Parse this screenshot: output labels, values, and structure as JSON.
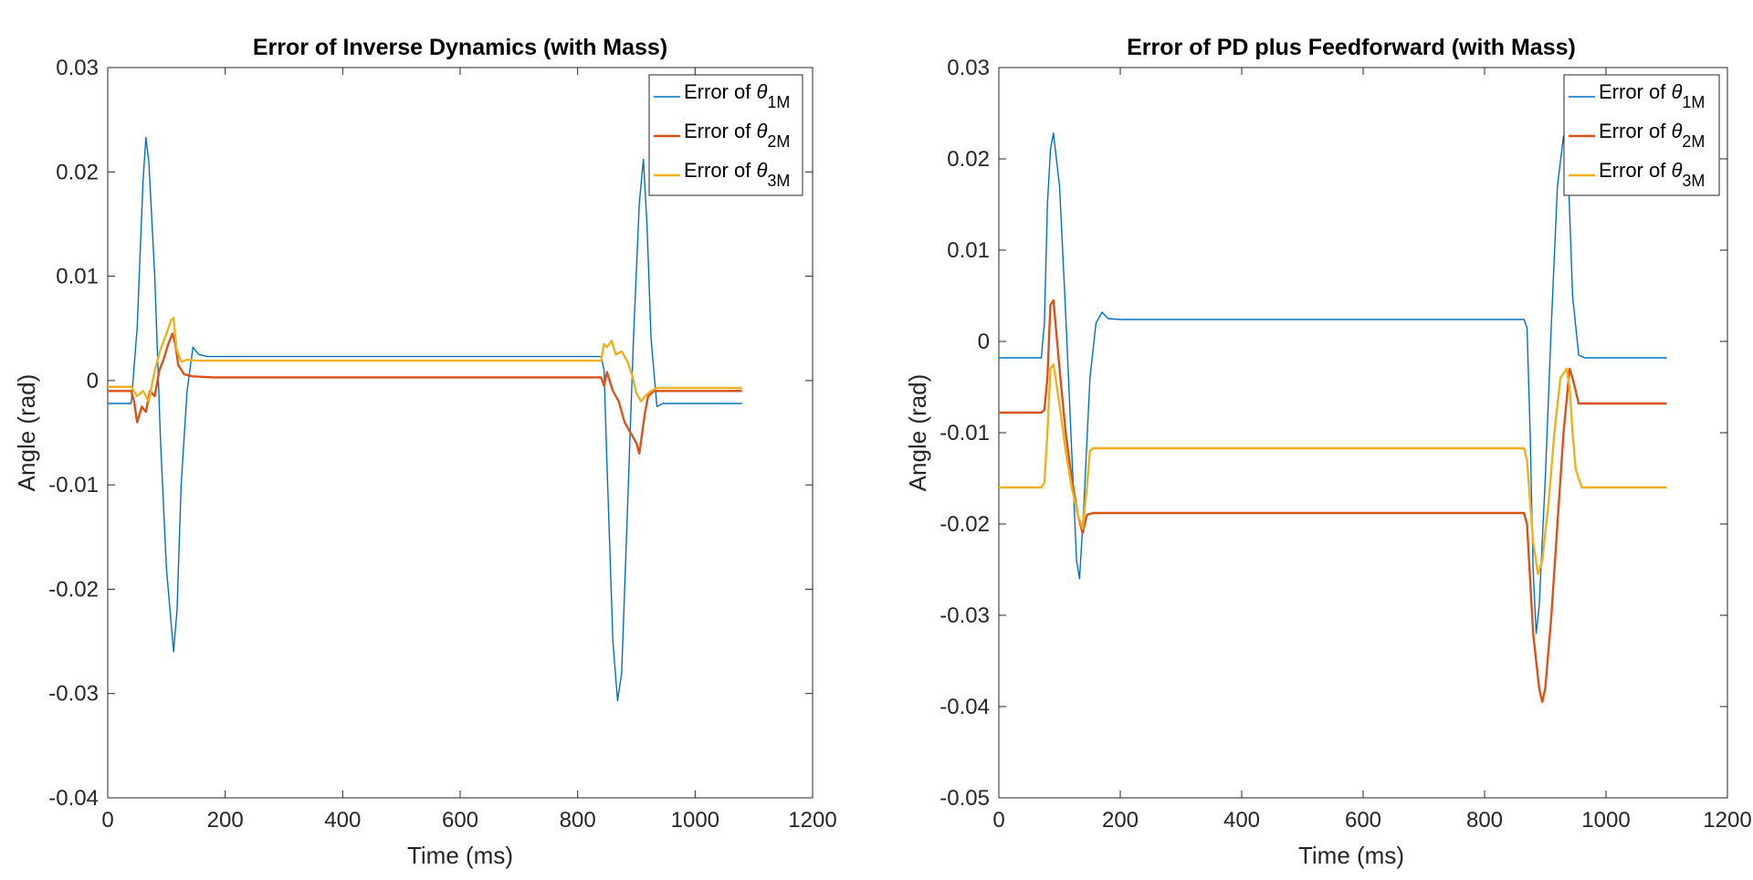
{
  "colors": {
    "series1": "#0072BD",
    "series2": "#D95319",
    "series3": "#EDB120",
    "axes": "#262626",
    "background": "#ffffff"
  },
  "chart_data": [
    {
      "type": "line",
      "title": "Error of Inverse Dynamics (with Mass)",
      "xlabel": "Time (ms)",
      "ylabel": "Angle (rad)",
      "xlim": [
        0,
        1200
      ],
      "ylim": [
        -0.04,
        0.03
      ],
      "xticks": [
        0,
        200,
        400,
        600,
        800,
        1000,
        1200
      ],
      "yticks": [
        -0.04,
        -0.03,
        -0.02,
        -0.01,
        0,
        0.01,
        0.02,
        0.03
      ],
      "xtick_labels": [
        "0",
        "200",
        "400",
        "600",
        "800",
        "1000",
        "1200"
      ],
      "ytick_labels": [
        "-0.04",
        "-0.03",
        "-0.02",
        "-0.01",
        "0",
        "0.01",
        "0.02",
        "0.03"
      ],
      "grid": false,
      "legend_position": "top-right",
      "series": [
        {
          "name": "Error of θ1M",
          "legend_prefix": "Error of ",
          "legend_symbol": "θ",
          "legend_subscript": "1M",
          "x": [
            0,
            40,
            50,
            60,
            65,
            70,
            80,
            90,
            100,
            112,
            118,
            125,
            135,
            145,
            155,
            170,
            200,
            400,
            600,
            800,
            840,
            845,
            850,
            860,
            868,
            875,
            885,
            895,
            905,
            912,
            918,
            925,
            935,
            945,
            1080
          ],
          "y": [
            -0.0022,
            -0.0022,
            0.005,
            0.019,
            0.0233,
            0.021,
            0.01,
            -0.006,
            -0.018,
            -0.026,
            -0.022,
            -0.01,
            -0.001,
            0.0032,
            0.0025,
            0.0023,
            0.0023,
            0.0023,
            0.0023,
            0.0023,
            0.0023,
            0.001,
            -0.008,
            -0.025,
            -0.0307,
            -0.028,
            -0.012,
            0.004,
            0.017,
            0.0212,
            0.015,
            0.004,
            -0.0025,
            -0.0022,
            -0.0022
          ]
        },
        {
          "name": "Error of θ2M",
          "legend_prefix": "Error of ",
          "legend_symbol": "θ",
          "legend_subscript": "2M",
          "x": [
            0,
            40,
            45,
            50,
            58,
            65,
            72,
            80,
            88,
            95,
            103,
            110,
            115,
            120,
            130,
            145,
            180,
            400,
            600,
            800,
            840,
            845,
            850,
            860,
            870,
            880,
            890,
            900,
            905,
            910,
            915,
            920,
            930,
            940,
            1080
          ],
          "y": [
            -0.001,
            -0.001,
            -0.002,
            -0.004,
            -0.0025,
            -0.003,
            -0.001,
            -0.0015,
            0.001,
            0.002,
            0.0035,
            0.0045,
            0.0035,
            0.0015,
            0.0006,
            0.0004,
            0.0003,
            0.0003,
            0.0003,
            0.0003,
            0.0003,
            -0.0005,
            0.0008,
            -0.001,
            -0.002,
            -0.004,
            -0.005,
            -0.006,
            -0.007,
            -0.005,
            -0.003,
            -0.0015,
            -0.001,
            -0.001,
            -0.001
          ]
        },
        {
          "name": "Error of θ3M",
          "legend_prefix": "Error of ",
          "legend_symbol": "θ",
          "legend_subscript": "3M",
          "x": [
            0,
            40,
            50,
            60,
            70,
            80,
            90,
            100,
            108,
            112,
            117,
            125,
            135,
            150,
            400,
            600,
            800,
            840,
            845,
            850,
            858,
            865,
            875,
            885,
            893,
            900,
            908,
            915,
            925,
            935,
            950,
            1080
          ],
          "y": [
            -0.0006,
            -0.0006,
            -0.0015,
            -0.001,
            -0.002,
            0.001,
            0.003,
            0.0045,
            0.0058,
            0.006,
            0.003,
            0.0018,
            0.002,
            0.0019,
            0.0019,
            0.0019,
            0.0019,
            0.0019,
            0.0035,
            0.0032,
            0.0038,
            0.0025,
            0.0028,
            0.0018,
            0.0005,
            -0.0012,
            -0.002,
            -0.0015,
            -0.001,
            -0.0007,
            -0.0007,
            -0.0007
          ]
        }
      ]
    },
    {
      "type": "line",
      "title": "Error of PD plus Feedforward (with Mass)",
      "xlabel": "Time (ms)",
      "ylabel": "Angle (rad)",
      "xlim": [
        0,
        1200
      ],
      "ylim": [
        -0.05,
        0.03
      ],
      "xticks": [
        0,
        200,
        400,
        600,
        800,
        1000,
        1200
      ],
      "yticks": [
        -0.05,
        -0.04,
        -0.03,
        -0.02,
        -0.01,
        0,
        0.01,
        0.02,
        0.03
      ],
      "xtick_labels": [
        "0",
        "200",
        "400",
        "600",
        "800",
        "1000",
        "1200"
      ],
      "ytick_labels": [
        "-0.05",
        "-0.04",
        "-0.03",
        "-0.02",
        "-0.01",
        "0",
        "0.01",
        "0.02",
        "0.03"
      ],
      "grid": false,
      "legend_position": "top-right",
      "series": [
        {
          "name": "Error of θ1M",
          "legend_prefix": "Error of ",
          "legend_symbol": "θ",
          "legend_subscript": "1M",
          "x": [
            0,
            70,
            75,
            80,
            85,
            90,
            100,
            110,
            120,
            128,
            133,
            140,
            150,
            160,
            170,
            180,
            200,
            400,
            600,
            800,
            865,
            870,
            875,
            880,
            885,
            890,
            900,
            910,
            920,
            930,
            938,
            945,
            955,
            965,
            1100
          ],
          "y": [
            -0.0018,
            -0.0018,
            0.002,
            0.015,
            0.021,
            0.0228,
            0.017,
            0.003,
            -0.012,
            -0.024,
            -0.026,
            -0.018,
            -0.004,
            0.002,
            0.0032,
            0.0025,
            0.0024,
            0.0024,
            0.0024,
            0.0024,
            0.0024,
            0.0015,
            -0.01,
            -0.025,
            -0.032,
            -0.029,
            -0.015,
            0.002,
            0.017,
            0.0225,
            0.018,
            0.005,
            -0.0015,
            -0.0018,
            -0.0018
          ]
        },
        {
          "name": "Error of θ2M",
          "legend_prefix": "Error of ",
          "legend_symbol": "θ",
          "legend_subscript": "2M",
          "x": [
            0,
            70,
            75,
            80,
            85,
            90,
            100,
            110,
            120,
            130,
            138,
            145,
            155,
            200,
            400,
            600,
            800,
            865,
            870,
            880,
            890,
            895,
            900,
            910,
            920,
            930,
            940,
            945,
            955,
            1100
          ],
          "y": [
            -0.0078,
            -0.0078,
            -0.0075,
            -0.004,
            0.004,
            0.0045,
            -0.003,
            -0.01,
            -0.015,
            -0.019,
            -0.021,
            -0.019,
            -0.0188,
            -0.0188,
            -0.0188,
            -0.0188,
            -0.0188,
            -0.0188,
            -0.02,
            -0.032,
            -0.038,
            -0.0395,
            -0.038,
            -0.03,
            -0.02,
            -0.01,
            -0.003,
            -0.004,
            -0.0068,
            -0.0068
          ]
        },
        {
          "name": "Error of θ3M",
          "legend_prefix": "Error of ",
          "legend_symbol": "θ",
          "legend_subscript": "3M",
          "x": [
            0,
            70,
            75,
            80,
            85,
            90,
            100,
            110,
            120,
            130,
            138,
            145,
            150,
            155,
            200,
            400,
            600,
            800,
            865,
            870,
            880,
            888,
            895,
            905,
            915,
            925,
            935,
            940,
            945,
            950,
            960,
            1100
          ],
          "y": [
            -0.016,
            -0.016,
            -0.0155,
            -0.01,
            -0.003,
            -0.0025,
            -0.007,
            -0.012,
            -0.016,
            -0.019,
            -0.0205,
            -0.016,
            -0.012,
            -0.0117,
            -0.0117,
            -0.0117,
            -0.0117,
            -0.0117,
            -0.0117,
            -0.013,
            -0.022,
            -0.0255,
            -0.024,
            -0.018,
            -0.01,
            -0.004,
            -0.003,
            -0.005,
            -0.01,
            -0.014,
            -0.016,
            -0.016
          ]
        }
      ]
    }
  ]
}
